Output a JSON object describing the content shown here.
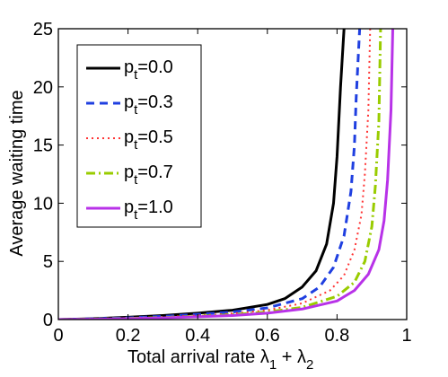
{
  "chart_data": {
    "type": "line",
    "title": "",
    "xlabel_text": "Total arrival rate",
    "xlabel_math": [
      {
        "symbol": "λ",
        "sub": "1"
      },
      {
        "symbol": "+",
        "sub": ""
      },
      {
        "symbol": "λ",
        "sub": "2"
      }
    ],
    "ylabel": "Average waiting time",
    "xlim": [
      0,
      1
    ],
    "ylim": [
      0,
      25
    ],
    "x_ticks": [
      "0",
      "0.2",
      "0.4",
      "0.6",
      "0.8",
      "1"
    ],
    "y_ticks": [
      "0",
      "5",
      "10",
      "15",
      "20",
      "25"
    ],
    "grid": false,
    "legend_position": "top-left",
    "series": [
      {
        "name": "p",
        "sub": "t",
        "value": "=0.0",
        "color": "#000000",
        "dash": "",
        "width": 3,
        "x": [
          0,
          0.1,
          0.2,
          0.3,
          0.4,
          0.5,
          0.6,
          0.65,
          0.7,
          0.74,
          0.77,
          0.79,
          0.8,
          0.81,
          0.82
        ],
        "y": [
          0,
          0.08,
          0.2,
          0.35,
          0.55,
          0.8,
          1.3,
          1.8,
          2.8,
          4.2,
          6.5,
          10,
          14,
          20,
          25
        ]
      },
      {
        "name": "p",
        "sub": "t",
        "value": "=0.3",
        "color": "#1f3fe0",
        "dash": "9,6",
        "width": 3,
        "x": [
          0,
          0.1,
          0.2,
          0.3,
          0.4,
          0.5,
          0.6,
          0.7,
          0.75,
          0.79,
          0.82,
          0.84,
          0.85,
          0.855,
          0.865
        ],
        "y": [
          0,
          0.06,
          0.15,
          0.28,
          0.45,
          0.65,
          1.0,
          1.8,
          2.8,
          4.5,
          7.2,
          11,
          15,
          19,
          25
        ]
      },
      {
        "name": "p",
        "sub": "t",
        "value": "=0.5",
        "color": "#ff3333",
        "dash": "2,4",
        "width": 2,
        "x": [
          0,
          0.1,
          0.2,
          0.3,
          0.4,
          0.5,
          0.6,
          0.7,
          0.78,
          0.82,
          0.85,
          0.87,
          0.88,
          0.89,
          0.895
        ],
        "y": [
          0,
          0.05,
          0.12,
          0.22,
          0.35,
          0.52,
          0.8,
          1.4,
          2.5,
          3.8,
          6.0,
          9.0,
          12.5,
          18,
          25
        ]
      },
      {
        "name": "p",
        "sub": "t",
        "value": "=0.7",
        "color": "#99cc00",
        "dash": "10,4,2,4",
        "width": 3,
        "x": [
          0,
          0.1,
          0.2,
          0.3,
          0.4,
          0.5,
          0.6,
          0.7,
          0.8,
          0.85,
          0.88,
          0.9,
          0.91,
          0.92,
          0.925
        ],
        "y": [
          0,
          0.04,
          0.1,
          0.18,
          0.28,
          0.42,
          0.65,
          1.05,
          2.0,
          3.2,
          5.0,
          8.0,
          11.5,
          17,
          25
        ]
      },
      {
        "name": "p",
        "sub": "t",
        "value": "=1.0",
        "color": "#b832e8",
        "dash": "",
        "width": 3,
        "x": [
          0,
          0.1,
          0.2,
          0.3,
          0.4,
          0.5,
          0.6,
          0.7,
          0.8,
          0.85,
          0.89,
          0.92,
          0.935,
          0.945,
          0.955,
          0.96
        ],
        "y": [
          0,
          0.03,
          0.08,
          0.15,
          0.24,
          0.35,
          0.55,
          0.9,
          1.6,
          2.5,
          3.9,
          6.0,
          8.5,
          12,
          18,
          25
        ]
      }
    ]
  }
}
